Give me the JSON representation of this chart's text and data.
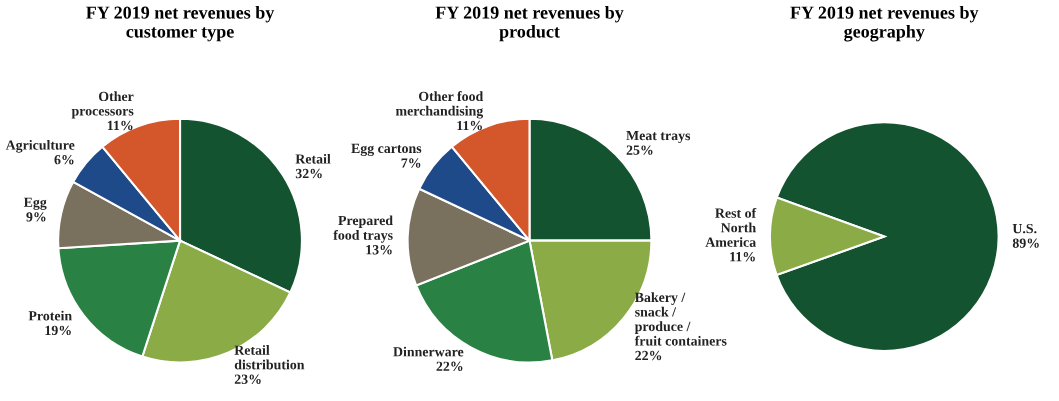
{
  "chart_data": [
    {
      "type": "pie",
      "title": "FY 2019 net revenues by\ncustomer type",
      "categories": [
        "Retail",
        "Retail\ndistribution",
        "Protein",
        "Egg",
        "Agriculture",
        "Other\nprocessors"
      ],
      "values": [
        32,
        23,
        19,
        9,
        6,
        11
      ],
      "value_labels": [
        "32%",
        "23%",
        "19%",
        "9%",
        "6%",
        "11%"
      ],
      "colors": [
        "#14532f",
        "#8aab45",
        "#2a8144",
        "#7a705e",
        "#1f4a8a",
        "#d4562b"
      ]
    },
    {
      "type": "pie",
      "title": "FY 2019 net revenues by\nproduct",
      "categories": [
        "Meat trays",
        "Bakery /\nsnack /\nproduce /\nfruit containers",
        "Dinnerware",
        "Prepared\nfood trays",
        "Egg cartons",
        "Other food\nmerchandising"
      ],
      "values": [
        25,
        22,
        22,
        13,
        7,
        11
      ],
      "value_labels": [
        "25%",
        "22%",
        "22%",
        "13%",
        "7%",
        "11%"
      ],
      "colors": [
        "#14532f",
        "#8aab45",
        "#2a8144",
        "#7a705e",
        "#1f4a8a",
        "#d4562b"
      ]
    },
    {
      "type": "pie",
      "title": "FY 2019 net revenues by\ngeography",
      "categories": [
        "U.S.",
        "Rest of\nNorth\nAmerica"
      ],
      "values": [
        89,
        11
      ],
      "value_labels": [
        "89%",
        "11%"
      ],
      "colors": [
        "#14532f",
        "#8aab45"
      ]
    }
  ]
}
